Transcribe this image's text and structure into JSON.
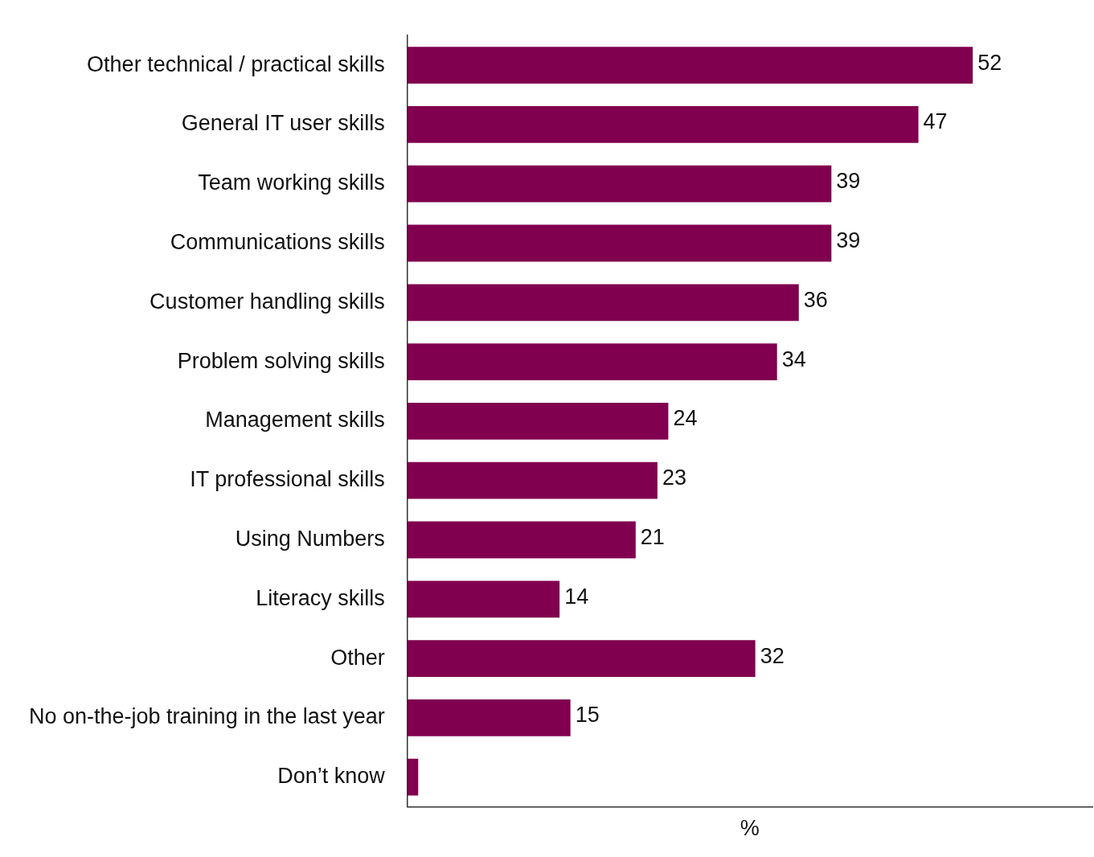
{
  "chart_data": {
    "type": "bar",
    "orientation": "horizontal",
    "xlabel": "%",
    "categories": [
      "Other technical / practical skills",
      "General IT user skills",
      "Team working skills",
      "Communications skills",
      "Customer handling skills",
      "Problem solving skills",
      "Management skills",
      "IT professional skills",
      "Using Numbers",
      "Literacy skills",
      "Other",
      "No on-the-job training in the last year",
      "Don’t know"
    ],
    "values": [
      52,
      47,
      39,
      39,
      36,
      34,
      24,
      23,
      21,
      14,
      32,
      15,
      1
    ],
    "value_labels": [
      "52",
      "47",
      "39",
      "39",
      "36",
      "34",
      "24",
      "23",
      "21",
      "14",
      "32",
      "15",
      null
    ],
    "color": "#80004f",
    "xlim": [
      0,
      63
    ],
    "tick_labels": "y"
  }
}
